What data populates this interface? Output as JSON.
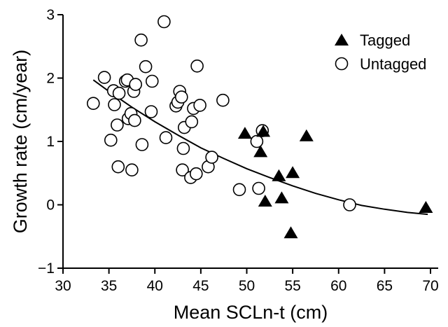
{
  "chart_data": {
    "type": "scatter",
    "title": "",
    "xlabel": "Mean SCLn-t (cm)",
    "ylabel": "Growth rate (cm/year)",
    "xlim": [
      30,
      70
    ],
    "ylim": [
      -1,
      3
    ],
    "xticks": [
      "30",
      "35",
      "40",
      "45",
      "50",
      "55",
      "60",
      "65",
      "70"
    ],
    "yticks": [
      "−1",
      "0",
      "1",
      "2",
      "3"
    ],
    "grid": false,
    "legend_position": "top-right",
    "series": [
      {
        "name": "Tagged",
        "marker": "filled-triangle",
        "points": [
          [
            49.8,
            1.12
          ],
          [
            51.5,
            0.83
          ],
          [
            51.8,
            1.15
          ],
          [
            52.0,
            0.05
          ],
          [
            53.5,
            0.45
          ],
          [
            53.8,
            0.1
          ],
          [
            55.0,
            0.5
          ],
          [
            56.5,
            1.08
          ],
          [
            54.8,
            -0.45
          ],
          [
            69.5,
            -0.05
          ]
        ]
      },
      {
        "name": "Untagged",
        "marker": "open-circle",
        "points": [
          [
            33.3,
            1.6
          ],
          [
            34.5,
            2.01
          ],
          [
            35.2,
            1.02
          ],
          [
            35.5,
            1.8
          ],
          [
            35.6,
            1.58
          ],
          [
            35.9,
            1.26
          ],
          [
            36.0,
            0.6
          ],
          [
            36.1,
            1.76
          ],
          [
            36.8,
            1.95
          ],
          [
            37.0,
            1.97
          ],
          [
            37.1,
            1.36
          ],
          [
            37.4,
            1.44
          ],
          [
            37.5,
            0.55
          ],
          [
            37.7,
            1.79
          ],
          [
            37.8,
            1.33
          ],
          [
            37.9,
            1.9
          ],
          [
            38.5,
            2.6
          ],
          [
            38.6,
            0.95
          ],
          [
            39.0,
            2.18
          ],
          [
            39.6,
            1.47
          ],
          [
            39.7,
            1.95
          ],
          [
            41.0,
            2.89
          ],
          [
            41.2,
            1.06
          ],
          [
            42.3,
            1.56
          ],
          [
            42.5,
            1.62
          ],
          [
            42.7,
            1.79
          ],
          [
            42.9,
            1.7
          ],
          [
            43.0,
            0.55
          ],
          [
            43.1,
            0.89
          ],
          [
            43.2,
            1.22
          ],
          [
            43.9,
            0.43
          ],
          [
            44.0,
            1.31
          ],
          [
            44.2,
            1.52
          ],
          [
            44.5,
            0.49
          ],
          [
            44.6,
            2.19
          ],
          [
            44.9,
            1.57
          ],
          [
            45.8,
            0.6
          ],
          [
            46.2,
            0.75
          ],
          [
            47.4,
            1.65
          ],
          [
            49.2,
            0.24
          ],
          [
            51.1,
            1.0
          ],
          [
            51.3,
            0.26
          ],
          [
            51.7,
            1.17
          ],
          [
            61.2,
            0.0
          ]
        ]
      }
    ],
    "fit_curve": {
      "x": [
        33.3,
        35,
        37.5,
        40,
        42.5,
        45,
        47.5,
        50,
        52.5,
        55,
        57.5,
        60,
        62.5,
        65,
        67.5,
        69.7
      ],
      "y": [
        1.97,
        1.79,
        1.54,
        1.31,
        1.1,
        0.9,
        0.73,
        0.57,
        0.43,
        0.3,
        0.18,
        0.08,
        -0.01,
        -0.07,
        -0.12,
        -0.15
      ]
    }
  }
}
